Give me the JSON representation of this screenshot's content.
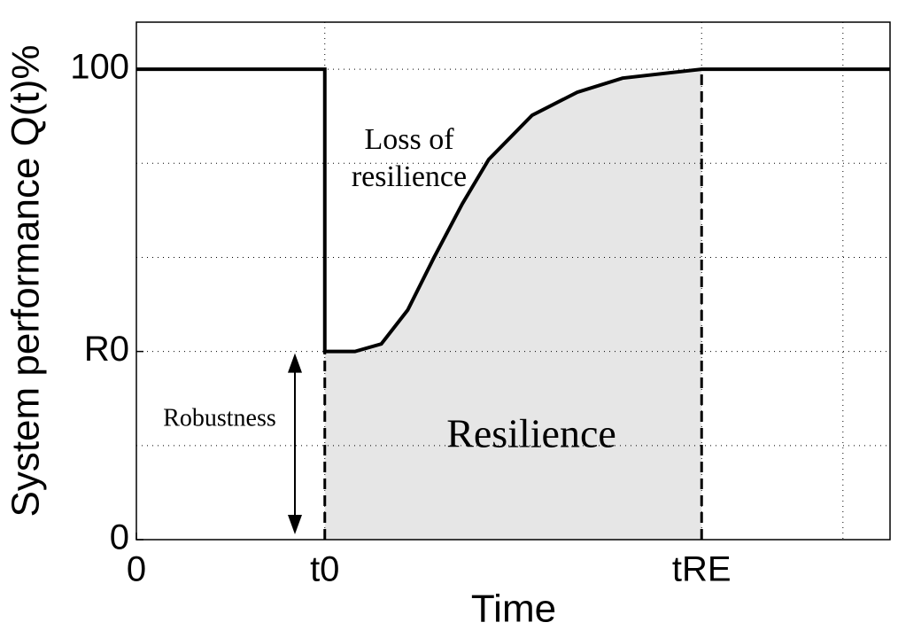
{
  "chart_data": {
    "type": "line",
    "xlabel": "Time",
    "ylabel": "System performance Q(t)%",
    "series": [
      {
        "name": "Q(t)",
        "color": "#000000",
        "x": [
          0,
          1,
          1,
          1.16,
          1.3,
          1.44,
          1.58,
          1.73,
          1.87,
          2.1,
          2.34,
          2.58,
          3,
          4
        ],
        "values": [
          100,
          100,
          40,
          40,
          41.6,
          48.8,
          60,
          71.4,
          80.8,
          90.2,
          95.1,
          98.1,
          100,
          100
        ]
      }
    ],
    "xlim": [
      0,
      4
    ],
    "ylim": [
      0,
      110
    ],
    "xticks": [
      0,
      {
        "value": 1,
        "label": "t0"
      },
      {
        "value": 3,
        "label": "tRE"
      }
    ],
    "yticks": [
      0,
      {
        "value": 40,
        "label": "R0"
      },
      100
    ],
    "xgrid": [
      3.75
    ],
    "ygrid": [
      20,
      60,
      80
    ],
    "grid": true,
    "fill_color": "#e6e6e6",
    "annotations": [
      "Loss of",
      "resilience",
      "Resilience",
      "Robustness"
    ]
  }
}
